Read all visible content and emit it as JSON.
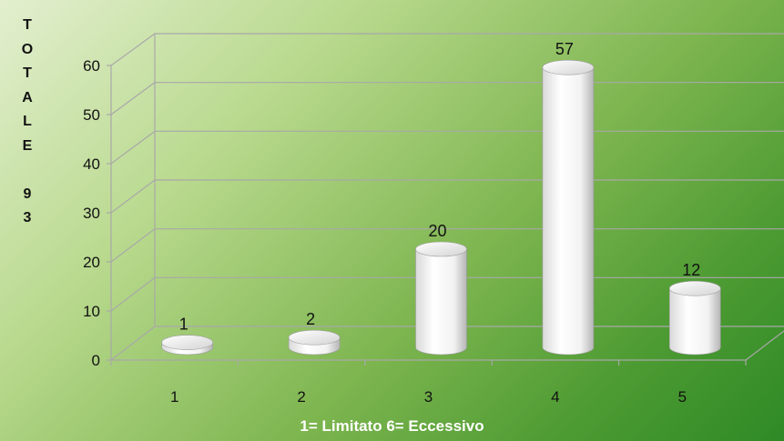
{
  "chart_data": {
    "type": "bar",
    "style": "3d-cylinder",
    "categories": [
      "1",
      "2",
      "3",
      "4",
      "5"
    ],
    "values": [
      1,
      2,
      20,
      57,
      12
    ],
    "data_labels": [
      "1",
      "2",
      "20",
      "57",
      "12"
    ],
    "y_ticks": [
      "0",
      "10",
      "20",
      "30",
      "40",
      "50",
      "60"
    ],
    "ylim": [
      0,
      60
    ],
    "ylabel": "TOTALE 93",
    "ylabel_lines": [
      "T",
      "O",
      "T",
      "A",
      "L",
      "E",
      "",
      "9",
      "3"
    ],
    "xlabel": "1= Limitato  6= Eccessivo",
    "grid": true,
    "legend": "none",
    "colors": {
      "bar": "#ffffff",
      "grid": "#a8a8a8",
      "text": "#111111",
      "xlabel": "#ffffff"
    }
  }
}
